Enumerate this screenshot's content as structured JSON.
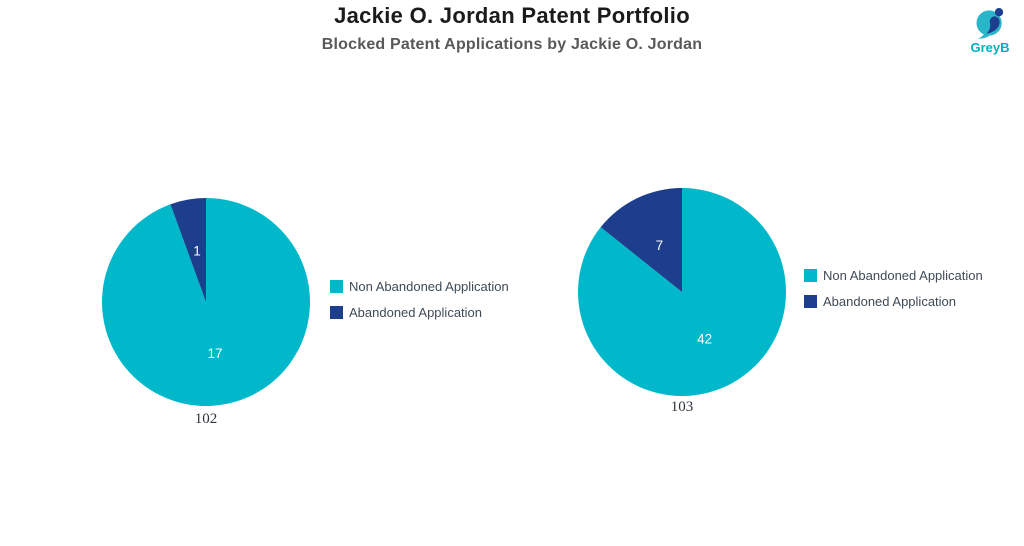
{
  "header": {
    "title": "Jackie O. Jordan Patent Portfolio",
    "subtitle": "Blocked Patent Applications by Jackie O. Jordan"
  },
  "logo": {
    "text": "GreyB",
    "mark_teal": "#29b6c9",
    "mark_navy": "#1d3e8e",
    "text_color": "#00aec6"
  },
  "colors": {
    "teal": "#00b8ca",
    "navy": "#1d3e8c",
    "legend_text": "#3f4b57",
    "title_text": "#1b1b1b",
    "subtitle_text": "#58595b",
    "caption_text": "#30363d",
    "slice_label": "#ffffff"
  },
  "chart_data": [
    {
      "type": "pie",
      "title": "102",
      "categories": [
        "Non Abandoned Application",
        "Abandoned Application"
      ],
      "values": [
        17,
        1
      ],
      "colors": [
        "#00b8ca",
        "#1d3e8c"
      ],
      "label_color": "#ffffff",
      "start_angle_deg": 0,
      "direction": "clockwise",
      "legend_position": "right"
    },
    {
      "type": "pie",
      "title": "103",
      "categories": [
        "Non Abandoned Application",
        "Abandoned Application"
      ],
      "values": [
        42,
        7
      ],
      "colors": [
        "#00b8ca",
        "#1d3e8c"
      ],
      "label_color": "#ffffff",
      "start_angle_deg": 0,
      "direction": "clockwise",
      "legend_position": "right"
    }
  ]
}
